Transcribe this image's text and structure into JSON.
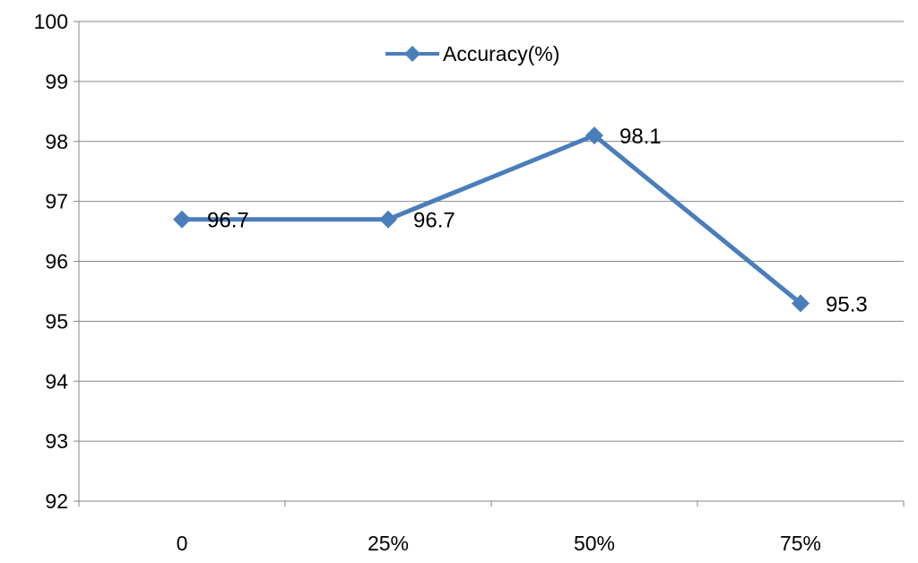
{
  "chart_data": {
    "type": "line",
    "categories": [
      "0",
      "25%",
      "50%",
      "75%"
    ],
    "series": [
      {
        "name": "Accuracy(%)",
        "values": [
          96.7,
          96.7,
          98.1,
          95.3
        ],
        "color": "#4a7ebb"
      }
    ],
    "data_labels": [
      "96.7",
      "96.7",
      "98.1",
      "95.3"
    ],
    "ylim": [
      92,
      100
    ],
    "yticks": [
      "92",
      "93",
      "94",
      "95",
      "96",
      "97",
      "98",
      "99",
      "100"
    ],
    "xlabel": "",
    "ylabel": "",
    "title": "",
    "grid": true,
    "legend_position": "top-center"
  }
}
